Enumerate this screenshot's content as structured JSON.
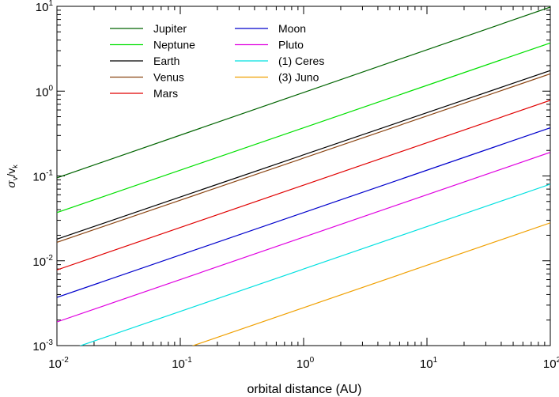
{
  "chart_data": {
    "type": "line",
    "xscale": "log",
    "yscale": "log",
    "xlim": [
      0.01,
      100
    ],
    "ylim": [
      0.001,
      10
    ],
    "xlabel": "orbital distance (AU)",
    "ylabel": {
      "main": "σ",
      "main_sub": "v",
      "sep": "/v",
      "sep_sub": "k"
    },
    "xticks": [
      {
        "value": 0.01,
        "base": "10",
        "exp": "-2"
      },
      {
        "value": 0.1,
        "base": "10",
        "exp": "-1"
      },
      {
        "value": 1,
        "base": "10",
        "exp": "0"
      },
      {
        "value": 10,
        "base": "10",
        "exp": "1"
      },
      {
        "value": 100,
        "base": "10",
        "exp": "2"
      }
    ],
    "yticks": [
      {
        "value": 0.001,
        "base": "10",
        "exp": "-3"
      },
      {
        "value": 0.01,
        "base": "10",
        "exp": "-2"
      },
      {
        "value": 0.1,
        "base": "10",
        "exp": "-1"
      },
      {
        "value": 1,
        "base": "10",
        "exp": "0"
      },
      {
        "value": 10,
        "base": "10",
        "exp": "1"
      }
    ],
    "grid": false,
    "legend_placement": "top-left",
    "series": [
      {
        "name": "Jupiter",
        "color": "#006400",
        "x": [
          0.01,
          100
        ],
        "y": [
          0.095,
          9.8
        ]
      },
      {
        "name": "Neptune",
        "color": "#00e000",
        "x": [
          0.01,
          100
        ],
        "y": [
          0.037,
          3.7
        ]
      },
      {
        "name": "Earth",
        "color": "#000000",
        "x": [
          0.01,
          100
        ],
        "y": [
          0.018,
          1.75
        ]
      },
      {
        "name": "Venus",
        "color": "#8b4513",
        "x": [
          0.01,
          100
        ],
        "y": [
          0.0165,
          1.6
        ]
      },
      {
        "name": "Mars",
        "color": "#e00000",
        "x": [
          0.01,
          100
        ],
        "y": [
          0.0078,
          0.78
        ]
      },
      {
        "name": "Moon",
        "color": "#0000cc",
        "x": [
          0.01,
          100
        ],
        "y": [
          0.0037,
          0.37
        ]
      },
      {
        "name": "Pluto",
        "color": "#e000e0",
        "x": [
          0.01,
          100
        ],
        "y": [
          0.0019,
          0.19
        ]
      },
      {
        "name": "(1) Ceres",
        "color": "#00e0e0",
        "x": [
          0.01,
          100
        ],
        "y": [
          0.0008,
          0.08
        ]
      },
      {
        "name": "(3) Juno",
        "color": "#f0a000",
        "x": [
          0.01,
          100
        ],
        "y": [
          0.00028,
          0.028
        ]
      }
    ]
  }
}
